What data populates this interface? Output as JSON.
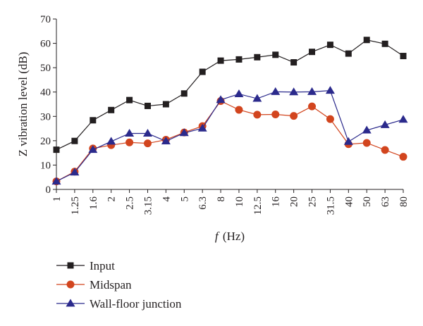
{
  "chart_data": {
    "type": "line",
    "title": "",
    "xlabel_var": "f",
    "xlabel_unit": "(Hz)",
    "ylabel": "Z vibration level (dB)",
    "ylim": [
      0,
      70
    ],
    "yticks": [
      "0",
      "10",
      "20",
      "30",
      "40",
      "50",
      "60",
      "70"
    ],
    "grid": false,
    "legend_position": "bottom-left",
    "categories": [
      "1",
      "1.25",
      "1.6",
      "2",
      "2.5",
      "3.15",
      "4",
      "5",
      "6.3",
      "8",
      "10",
      "12.5",
      "16",
      "20",
      "25",
      "31.5",
      "40",
      "50",
      "63",
      "80"
    ],
    "series": [
      {
        "name": "Input",
        "color": "#231f20",
        "marker": "square",
        "values": [
          16.3,
          19.9,
          28.4,
          32.6,
          36.7,
          34.3,
          35.0,
          39.4,
          48.3,
          52.9,
          53.4,
          54.3,
          55.3,
          52.2,
          56.5,
          59.4,
          55.8,
          61.4,
          59.8,
          54.8
        ]
      },
      {
        "name": "Midspan",
        "color": "#d2451e",
        "marker": "circle",
        "values": [
          3.3,
          7.3,
          16.8,
          18.2,
          19.3,
          18.9,
          20.4,
          23.4,
          26.0,
          36.3,
          32.7,
          30.7,
          30.8,
          30.2,
          34.1,
          28.9,
          18.6,
          19.1,
          16.2,
          13.4
        ]
      },
      {
        "name": "Wall-floor junction",
        "color": "#2b2a8c",
        "marker": "triangle",
        "values": [
          3.3,
          7.0,
          16.3,
          19.7,
          23.0,
          23.0,
          19.8,
          23.2,
          25.1,
          36.8,
          39.2,
          37.3,
          40.1,
          40.0,
          40.1,
          40.6,
          19.6,
          24.3,
          26.5,
          28.7
        ]
      }
    ]
  }
}
